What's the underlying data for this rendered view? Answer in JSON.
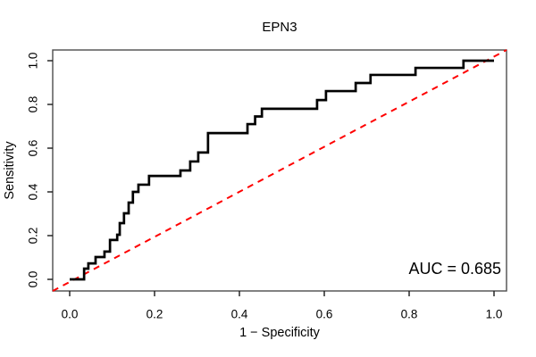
{
  "chart_data": {
    "type": "line",
    "subtype": "roc-step-curve",
    "title": "EPN3",
    "xlabel": "1 − Specificity",
    "ylabel": "Sensitivity",
    "annotation": "AUC = 0.685",
    "auc_value": 0.685,
    "xlim": [
      0.0,
      1.0
    ],
    "ylim": [
      0.0,
      1.0
    ],
    "x_ticks": [
      0.0,
      0.2,
      0.4,
      0.6,
      0.8,
      1.0
    ],
    "y_ticks": [
      0.0,
      0.2,
      0.4,
      0.6,
      0.8,
      1.0
    ],
    "x_tick_labels": [
      "0.0",
      "0.2",
      "0.4",
      "0.6",
      "0.8",
      "1.0"
    ],
    "y_tick_labels": [
      "0.0",
      "0.2",
      "0.4",
      "0.6",
      "0.8",
      "1.0"
    ],
    "grid": "off",
    "legend": "none",
    "colors": {
      "curve": "#000000",
      "diagonal": "#FF0000",
      "box": "#4d4d4d",
      "tick": "#1a1a1a",
      "text": "#000000",
      "background": "#ffffff"
    },
    "series": [
      {
        "name": "ROC curve",
        "color": "#000000",
        "line_style": "solid",
        "draw": "step-h-then-v",
        "start": [
          0.0,
          0.0
        ],
        "steps": [
          [
            0.034,
            0.049
          ],
          [
            0.044,
            0.073
          ],
          [
            0.061,
            0.102
          ],
          [
            0.082,
            0.127
          ],
          [
            0.095,
            0.18
          ],
          [
            0.112,
            0.204
          ],
          [
            0.118,
            0.257
          ],
          [
            0.128,
            0.302
          ],
          [
            0.139,
            0.351
          ],
          [
            0.149,
            0.4
          ],
          [
            0.162,
            0.433
          ],
          [
            0.187,
            0.473
          ],
          [
            0.261,
            0.498
          ],
          [
            0.284,
            0.539
          ],
          [
            0.303,
            0.58
          ],
          [
            0.326,
            0.669
          ],
          [
            0.419,
            0.71
          ],
          [
            0.437,
            0.745
          ],
          [
            0.453,
            0.78
          ],
          [
            0.583,
            0.82
          ],
          [
            0.604,
            0.861
          ],
          [
            0.674,
            0.898
          ],
          [
            0.709,
            0.935
          ],
          [
            0.815,
            0.967
          ],
          [
            0.928,
            1.0
          ]
        ],
        "end": [
          1.0,
          1.0
        ]
      },
      {
        "name": "Chance diagonal",
        "color": "#FF0000",
        "line_style": "dashed",
        "points": [
          [
            0.0,
            0.0
          ],
          [
            1.0,
            1.0
          ]
        ]
      }
    ]
  }
}
